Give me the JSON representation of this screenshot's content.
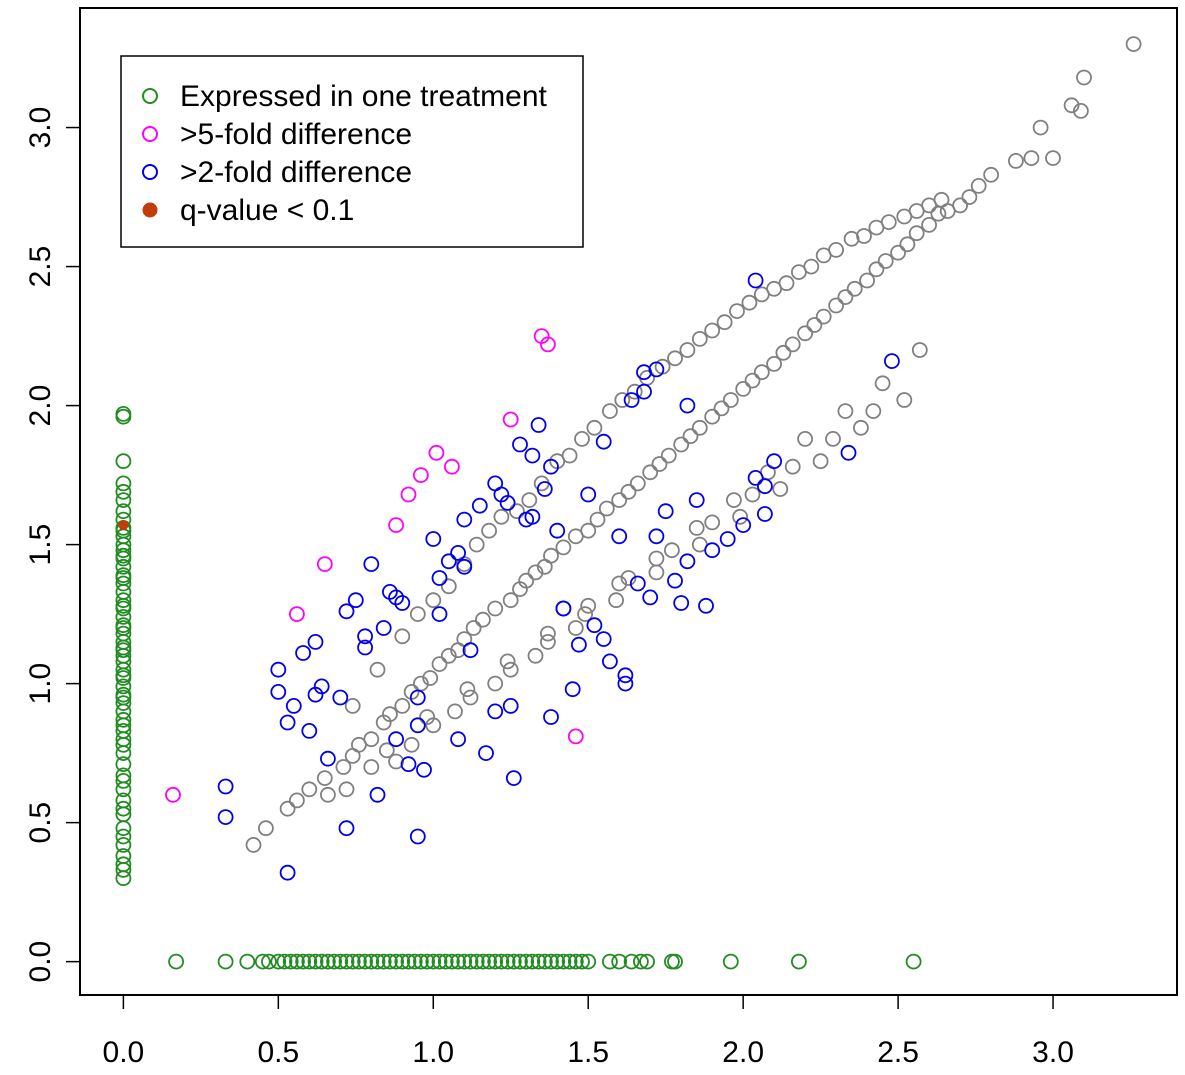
{
  "chart_data": {
    "type": "scatter",
    "title": "",
    "xlabel": "",
    "ylabel": "",
    "xlim": [
      -0.14,
      3.4
    ],
    "ylim": [
      -0.12,
      3.43
    ],
    "x_ticks": [
      "0.0",
      "0.5",
      "1.0",
      "1.5",
      "2.0",
      "2.5",
      "3.0"
    ],
    "y_ticks": [
      "0.0",
      "0.5",
      "1.0",
      "1.5",
      "2.0",
      "2.5",
      "3.0"
    ],
    "grid": false,
    "legend_position": "top-left",
    "legend": [
      {
        "label": "Expressed in one treatment",
        "color": "#228B22",
        "marker": "open-circle"
      },
      {
        "label": ">5-fold difference",
        "color": "#FF00FF",
        "marker": "open-circle"
      },
      {
        "label": ">2-fold difference",
        "color": "#0000EE",
        "marker": "open-circle"
      },
      {
        "label": "q-value < 0.1",
        "color": "#C43C0A",
        "marker": "filled-circle"
      }
    ],
    "series": [
      {
        "category": "similar",
        "color": "#808080",
        "x": [
          0.42,
          0.46,
          0.53,
          0.56,
          0.6,
          0.65,
          0.66,
          0.71,
          0.74,
          0.76,
          0.8,
          0.84,
          0.86,
          0.9,
          0.93,
          0.96,
          0.99,
          1.02,
          1.05,
          1.08,
          1.1,
          1.13,
          1.16,
          1.2,
          1.25,
          1.28,
          1.3,
          1.33,
          1.36,
          1.38,
          1.42,
          1.46,
          1.5,
          1.53,
          1.56,
          1.6,
          1.63,
          1.66,
          1.7,
          1.73,
          1.76,
          1.8,
          1.83,
          1.86,
          1.9,
          1.93,
          1.96,
          2.0,
          2.03,
          2.06,
          2.1,
          2.13,
          2.16,
          2.2,
          2.23,
          2.26,
          2.3,
          2.33,
          2.36,
          2.4,
          2.43,
          2.46,
          2.5,
          2.53,
          2.56,
          2.6,
          2.63,
          2.66,
          2.7,
          2.73,
          2.76,
          2.8,
          2.88,
          2.93,
          2.96,
          3.0,
          3.06,
          3.09,
          3.1,
          3.26,
          0.74,
          0.82,
          0.9,
          0.95,
          1.0,
          1.05,
          1.1,
          1.14,
          1.18,
          1.22,
          1.27,
          1.31,
          1.35,
          1.4,
          1.44,
          1.48,
          1.52,
          1.57,
          1.61,
          1.65,
          1.69,
          1.74,
          1.78,
          1.82,
          1.86,
          1.9,
          1.94,
          1.98,
          2.02,
          2.06,
          2.1,
          2.14,
          2.18,
          2.22,
          2.26,
          2.3,
          2.35,
          2.39,
          2.43,
          2.47,
          2.52,
          2.56,
          2.6,
          2.64,
          0.88,
          1.0,
          1.12,
          1.25,
          1.37,
          1.49,
          1.6,
          1.72,
          1.85,
          1.97,
          2.08,
          2.2,
          2.33,
          2.45,
          2.57,
          0.8,
          0.93,
          1.07,
          1.2,
          1.33,
          1.46,
          1.59,
          1.72,
          1.86,
          1.99,
          2.12,
          2.25,
          2.38,
          2.52,
          0.72,
          0.85,
          0.98,
          1.11,
          1.24,
          1.37,
          1.5,
          1.63,
          1.77,
          1.9,
          2.03,
          2.16,
          2.29,
          2.42
        ],
        "y": [
          0.42,
          0.48,
          0.55,
          0.58,
          0.62,
          0.66,
          0.6,
          0.7,
          0.74,
          0.78,
          0.8,
          0.86,
          0.89,
          0.92,
          0.97,
          1.0,
          1.02,
          1.07,
          1.1,
          1.12,
          1.16,
          1.2,
          1.23,
          1.27,
          1.3,
          1.34,
          1.37,
          1.4,
          1.42,
          1.46,
          1.49,
          1.53,
          1.55,
          1.59,
          1.63,
          1.66,
          1.69,
          1.72,
          1.76,
          1.79,
          1.82,
          1.86,
          1.89,
          1.92,
          1.96,
          1.99,
          2.02,
          2.06,
          2.09,
          2.12,
          2.15,
          2.19,
          2.22,
          2.26,
          2.29,
          2.32,
          2.36,
          2.39,
          2.42,
          2.45,
          2.49,
          2.52,
          2.55,
          2.58,
          2.62,
          2.65,
          2.69,
          2.7,
          2.72,
          2.75,
          2.79,
          2.83,
          2.88,
          2.89,
          3.0,
          2.89,
          3.08,
          3.06,
          3.18,
          3.3,
          0.92,
          1.05,
          1.17,
          1.25,
          1.3,
          1.35,
          1.43,
          1.5,
          1.55,
          1.6,
          1.62,
          1.66,
          1.72,
          1.8,
          1.82,
          1.88,
          1.92,
          1.98,
          2.02,
          2.05,
          2.1,
          2.14,
          2.17,
          2.2,
          2.24,
          2.27,
          2.3,
          2.34,
          2.37,
          2.4,
          2.42,
          2.44,
          2.48,
          2.5,
          2.54,
          2.56,
          2.6,
          2.61,
          2.64,
          2.66,
          2.68,
          2.7,
          2.72,
          2.74,
          0.72,
          0.85,
          0.95,
          1.05,
          1.15,
          1.25,
          1.36,
          1.45,
          1.56,
          1.66,
          1.76,
          1.88,
          1.98,
          2.08,
          2.2,
          0.7,
          0.78,
          0.9,
          1.0,
          1.1,
          1.2,
          1.3,
          1.4,
          1.5,
          1.6,
          1.7,
          1.8,
          1.92,
          2.02,
          0.62,
          0.76,
          0.88,
          0.98,
          1.08,
          1.18,
          1.28,
          1.38,
          1.48,
          1.58,
          1.68,
          1.78,
          1.88,
          1.98
        ]
      },
      {
        "category": ">2-fold difference",
        "color": "#0000EE",
        "x": [
          0.33,
          0.33,
          0.53,
          0.5,
          0.5,
          0.53,
          0.55,
          0.58,
          0.6,
          0.62,
          0.64,
          0.66,
          0.7,
          0.72,
          0.72,
          0.75,
          0.78,
          0.8,
          0.82,
          0.84,
          0.86,
          0.88,
          0.9,
          0.92,
          0.95,
          0.97,
          1.0,
          1.02,
          1.05,
          1.08,
          1.1,
          1.12,
          1.15,
          1.17,
          1.2,
          1.22,
          1.24,
          1.26,
          1.28,
          1.3,
          1.32,
          1.34,
          1.36,
          1.38,
          1.4,
          1.42,
          1.45,
          1.47,
          1.5,
          1.52,
          1.55,
          1.57,
          1.6,
          1.62,
          1.64,
          1.66,
          1.68,
          1.7,
          1.72,
          1.75,
          1.78,
          1.8,
          1.82,
          1.85,
          1.88,
          1.9,
          1.95,
          2.0,
          2.04,
          2.07,
          2.1,
          2.34,
          2.48,
          1.72,
          1.42,
          1.1,
          0.88,
          0.95,
          1.2,
          1.38,
          1.62,
          1.82,
          0.62,
          0.95,
          1.08,
          1.25,
          1.55,
          1.68,
          2.04,
          2.07,
          1.32,
          0.78,
          1.02
        ],
        "y": [
          0.63,
          0.52,
          0.32,
          1.05,
          0.97,
          0.86,
          0.92,
          1.11,
          0.83,
          0.96,
          0.99,
          0.73,
          0.95,
          0.48,
          1.26,
          1.3,
          1.17,
          1.43,
          0.6,
          1.2,
          1.33,
          1.31,
          1.29,
          0.71,
          0.45,
          0.69,
          1.52,
          1.38,
          1.44,
          1.47,
          1.59,
          1.12,
          1.64,
          0.75,
          1.72,
          1.68,
          1.65,
          0.66,
          1.86,
          1.59,
          1.82,
          1.93,
          1.7,
          1.78,
          1.55,
          1.27,
          0.98,
          1.14,
          1.68,
          1.21,
          1.87,
          1.08,
          1.53,
          1.03,
          2.02,
          1.36,
          2.12,
          1.31,
          1.53,
          1.62,
          1.37,
          1.29,
          1.44,
          1.66,
          1.28,
          1.48,
          1.52,
          1.57,
          1.74,
          1.61,
          1.8,
          1.83,
          2.16,
          2.13,
          1.27,
          1.42,
          0.8,
          0.85,
          0.9,
          0.88,
          1.0,
          2.0,
          1.15,
          0.95,
          0.8,
          0.92,
          1.16,
          2.05,
          2.45,
          1.71,
          1.6,
          1.13,
          1.25
        ]
      },
      {
        "category": ">5-fold difference",
        "color": "#FF00FF",
        "x": [
          0.16,
          0.56,
          0.65,
          0.88,
          0.92,
          0.96,
          1.01,
          1.06,
          1.25,
          1.35,
          1.37,
          1.46
        ],
        "y": [
          0.6,
          1.25,
          1.43,
          1.57,
          1.68,
          1.75,
          1.83,
          1.78,
          1.95,
          2.25,
          2.22,
          0.81
        ]
      },
      {
        "category": "Expressed in one treatment",
        "color": "#228B22",
        "x": [
          0,
          0,
          0,
          0,
          0,
          0,
          0,
          0,
          0,
          0,
          0,
          0,
          0,
          0,
          0,
          0,
          0,
          0,
          0,
          0,
          0,
          0,
          0,
          0,
          0,
          0,
          0,
          0,
          0,
          0,
          0,
          0,
          0,
          0,
          0,
          0,
          0,
          0,
          0,
          0,
          0,
          0,
          0,
          0,
          0,
          0,
          0,
          0,
          0,
          0,
          0,
          0,
          0,
          0,
          0,
          0,
          0,
          0,
          0,
          0,
          0.17,
          0.33,
          0.4,
          0.45,
          0.47,
          0.5,
          0.52,
          0.54,
          0.56,
          0.58,
          0.6,
          0.62,
          0.64,
          0.66,
          0.68,
          0.7,
          0.72,
          0.74,
          0.76,
          0.78,
          0.8,
          0.82,
          0.84,
          0.86,
          0.88,
          0.9,
          0.92,
          0.94,
          0.96,
          0.98,
          1.0,
          1.02,
          1.04,
          1.06,
          1.08,
          1.1,
          1.12,
          1.14,
          1.16,
          1.18,
          1.2,
          1.22,
          1.24,
          1.26,
          1.28,
          1.3,
          1.32,
          1.34,
          1.36,
          1.38,
          1.4,
          1.42,
          1.44,
          1.46,
          1.48,
          1.5,
          1.57,
          1.6,
          1.64,
          1.67,
          1.69,
          1.77,
          1.78,
          1.96,
          2.18,
          2.55
        ],
        "y": [
          0.3,
          0.33,
          0.38,
          0.42,
          0.48,
          0.53,
          0.58,
          0.62,
          0.67,
          0.71,
          0.75,
          0.8,
          0.83,
          0.87,
          0.9,
          0.93,
          0.96,
          0.99,
          1.02,
          1.05,
          1.08,
          1.1,
          1.12,
          1.15,
          1.18,
          1.21,
          1.24,
          1.27,
          1.3,
          1.33,
          1.36,
          1.39,
          1.42,
          1.45,
          1.48,
          1.5,
          1.53,
          1.56,
          1.59,
          1.62,
          1.66,
          1.69,
          1.72,
          1.8,
          1.96,
          1.97,
          0.35,
          0.45,
          0.55,
          0.65,
          0.78,
          0.85,
          0.95,
          1.03,
          1.13,
          1.2,
          1.28,
          1.38,
          1.46,
          1.55,
          0,
          0,
          0,
          0,
          0,
          0,
          0,
          0,
          0,
          0,
          0,
          0,
          0,
          0,
          0,
          0,
          0,
          0,
          0,
          0,
          0,
          0,
          0,
          0,
          0,
          0,
          0,
          0,
          0,
          0,
          0,
          0,
          0,
          0,
          0,
          0,
          0,
          0,
          0,
          0,
          0,
          0,
          0,
          0,
          0,
          0,
          0,
          0,
          0,
          0,
          0,
          0,
          0,
          0,
          0,
          0,
          0,
          0,
          0,
          0,
          0,
          0,
          0,
          0,
          0,
          0
        ]
      },
      {
        "category": "q-value < 0.1",
        "color": "#C43C0A",
        "marker": "filled",
        "x": [
          0
        ],
        "y": [
          1.57
        ]
      }
    ]
  }
}
